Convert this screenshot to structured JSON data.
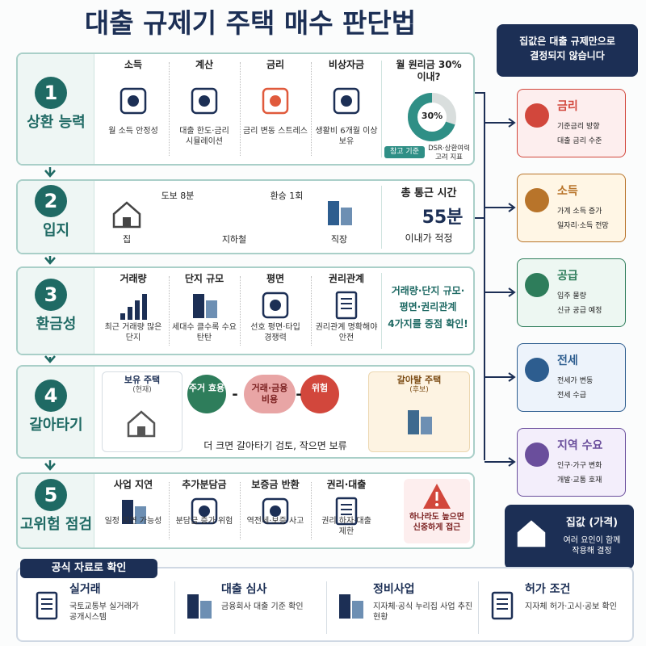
{
  "title": "대출 규제기 주택 매수 판단법",
  "steps": [
    {
      "number": "1",
      "label": "상환 능력",
      "items": [
        {
          "title": "소득",
          "desc": "월 소득 안정성"
        },
        {
          "title": "계산",
          "desc": "대출 한도·금리 시뮬레이션"
        },
        {
          "title": "금리",
          "desc": "금리 변동 스트레스"
        },
        {
          "title": "비상자금",
          "desc": "생활비 6개월 이상 보유"
        }
      ],
      "side": {
        "title": "월 원리금 30% 이내?",
        "ratio": {
          "value": 30,
          "label": "30%"
        },
        "badge": "참고 기준",
        "note": "DSR·상환여력 고려 지표"
      }
    },
    {
      "number": "2",
      "label": "입지",
      "route": {
        "home": "집",
        "walk": "도보 8분",
        "subway": "지하철",
        "transfer": "환승 1회",
        "work": "직장"
      },
      "side": {
        "title": "총 통근 시간",
        "time": "55분",
        "note": "이내가 적정"
      }
    },
    {
      "number": "3",
      "label": "환금성",
      "items": [
        {
          "title": "거래량",
          "desc": "최근 거래량 많은 단지"
        },
        {
          "title": "단지 규모",
          "desc": "세대수 클수록 수요 탄탄"
        },
        {
          "title": "평면",
          "desc": "선호 평면·타입 경쟁력"
        },
        {
          "title": "권리관계",
          "desc": "권리관계 명확해야 안전"
        }
      ],
      "side": {
        "text": "거래량·단지 규모·평면·권리관계 4가지를 중점 확인!"
      }
    },
    {
      "number": "4",
      "label": "갈아타기",
      "current": {
        "title": "보유 주택",
        "tag": "(현재)"
      },
      "candidate": {
        "title": "갈아탈 주택",
        "tag": "(후보)"
      },
      "terms": [
        "주거 효용",
        "거래·금융 비용",
        "위험"
      ],
      "operators": [
        "-",
        "-"
      ],
      "rule": "더 크면 갈아타기 검토, 작으면 보류"
    },
    {
      "number": "5",
      "label": "고위험 점검",
      "items": [
        {
          "title": "사업 지연",
          "desc": "일정 지연 가능성"
        },
        {
          "title": "추가분담금",
          "desc": "분담금 증가 위험"
        },
        {
          "title": "보증금 반환",
          "desc": "역전세·보증 사고"
        },
        {
          "title": "권리·대출",
          "desc": "권리 하자·대출 제한"
        }
      ],
      "side": {
        "text": "하나라도 높으면 신중하게 접근"
      }
    }
  ],
  "factors_header": "집값은 대출 규제만으로 결정되지 않습니다",
  "factors": [
    {
      "title": "금리",
      "points": [
        "기준금리 방향",
        "대출 금리 수준"
      ]
    },
    {
      "title": "소득",
      "points": [
        "가계 소득 증가",
        "일자리·소득 전망"
      ]
    },
    {
      "title": "공급",
      "points": [
        "입주 물량",
        "신규 공급 예정"
      ]
    },
    {
      "title": "전세",
      "points": [
        "전세가 변동",
        "전세 수급"
      ]
    },
    {
      "title": "지역 수요",
      "points": [
        "인구·가구 변화",
        "개발·교통 호재"
      ]
    }
  ],
  "result": {
    "title": "집값 (가격)",
    "text": "여러 요인이 함께 작용해 결정"
  },
  "sources": {
    "title": "공식 자료로 확인",
    "items": [
      {
        "title": "실거래",
        "text": "국토교통부 실거래가 공개시스템"
      },
      {
        "title": "대출 심사",
        "text": "금융회사 대출 기준 확인"
      },
      {
        "title": "정비사업",
        "text": "지자체·공식 누리집 사업 추진 현황"
      },
      {
        "title": "허가 조건",
        "text": "지자체 허가·고시·공보 확인"
      }
    ]
  }
}
